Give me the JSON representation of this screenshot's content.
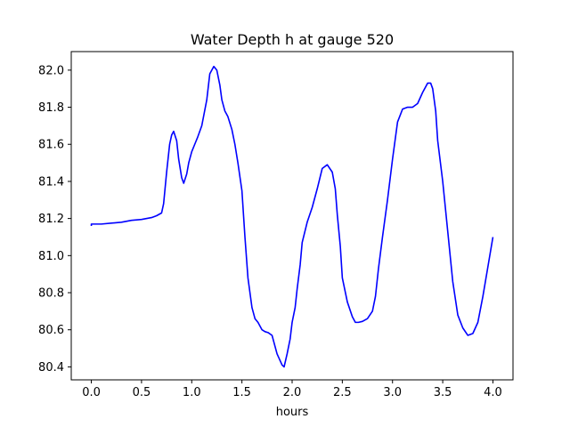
{
  "chart_data": {
    "type": "line",
    "title": "Water Depth h at gauge 520",
    "xlabel": "hours",
    "ylabel": "",
    "xlim": [
      -0.2,
      4.2
    ],
    "ylim": [
      80.33,
      82.1
    ],
    "xticks": [
      0.0,
      0.5,
      1.0,
      1.5,
      2.0,
      2.5,
      3.0,
      3.5,
      4.0
    ],
    "xtick_labels": [
      "0.0",
      "0.5",
      "1.0",
      "1.5",
      "2.0",
      "2.5",
      "3.0",
      "3.5",
      "4.0"
    ],
    "yticks": [
      80.4,
      80.6,
      80.8,
      81.0,
      81.2,
      81.4,
      81.6,
      81.8,
      82.0
    ],
    "ytick_labels": [
      "80.4",
      "80.6",
      "80.8",
      "81.0",
      "81.2",
      "81.4",
      "81.6",
      "81.8",
      "82.0"
    ],
    "grid": false,
    "series": [
      {
        "color": "#0000ff",
        "x": [
          0.0,
          0.0,
          0.1,
          0.2,
          0.3,
          0.4,
          0.5,
          0.6,
          0.65,
          0.7,
          0.72,
          0.75,
          0.78,
          0.8,
          0.82,
          0.85,
          0.87,
          0.9,
          0.92,
          0.95,
          0.97,
          1.0,
          1.03,
          1.06,
          1.1,
          1.15,
          1.18,
          1.22,
          1.25,
          1.28,
          1.3,
          1.33,
          1.36,
          1.4,
          1.43,
          1.46,
          1.5,
          1.53,
          1.56,
          1.6,
          1.63,
          1.66,
          1.7,
          1.73,
          1.76,
          1.8,
          1.85,
          1.9,
          1.92,
          1.95,
          1.98,
          2.0,
          2.03,
          2.05,
          2.08,
          2.1,
          2.15,
          2.2,
          2.25,
          2.3,
          2.35,
          2.4,
          2.43,
          2.45,
          2.48,
          2.5,
          2.55,
          2.6,
          2.63,
          2.66,
          2.7,
          2.75,
          2.8,
          2.83,
          2.86,
          2.9,
          2.95,
          3.0,
          3.05,
          3.1,
          3.15,
          3.2,
          3.25,
          3.3,
          3.35,
          3.38,
          3.4,
          3.43,
          3.45,
          3.5,
          3.55,
          3.6,
          3.65,
          3.7,
          3.75,
          3.8,
          3.85,
          3.9,
          3.95,
          4.0
        ],
        "y": [
          81.16,
          81.17,
          81.17,
          81.175,
          81.18,
          81.19,
          81.195,
          81.205,
          81.215,
          81.23,
          81.28,
          81.45,
          81.6,
          81.65,
          81.67,
          81.62,
          81.52,
          81.42,
          81.39,
          81.44,
          81.5,
          81.56,
          81.6,
          81.64,
          81.7,
          81.84,
          81.98,
          82.02,
          82.0,
          81.92,
          81.84,
          81.78,
          81.75,
          81.68,
          81.6,
          81.5,
          81.35,
          81.1,
          80.88,
          80.72,
          80.66,
          80.64,
          80.6,
          80.59,
          80.585,
          80.57,
          80.47,
          80.41,
          80.4,
          80.47,
          80.55,
          80.64,
          80.72,
          80.82,
          80.95,
          81.07,
          81.18,
          81.26,
          81.36,
          81.47,
          81.49,
          81.45,
          81.36,
          81.22,
          81.05,
          80.88,
          80.75,
          80.67,
          80.64,
          80.64,
          80.645,
          80.66,
          80.7,
          80.78,
          80.93,
          81.1,
          81.3,
          81.52,
          81.72,
          81.79,
          81.8,
          81.8,
          81.82,
          81.88,
          81.93,
          81.93,
          81.9,
          81.78,
          81.62,
          81.4,
          81.13,
          80.86,
          80.68,
          80.61,
          80.57,
          80.58,
          80.64,
          80.78,
          80.94,
          81.1
        ]
      }
    ]
  }
}
